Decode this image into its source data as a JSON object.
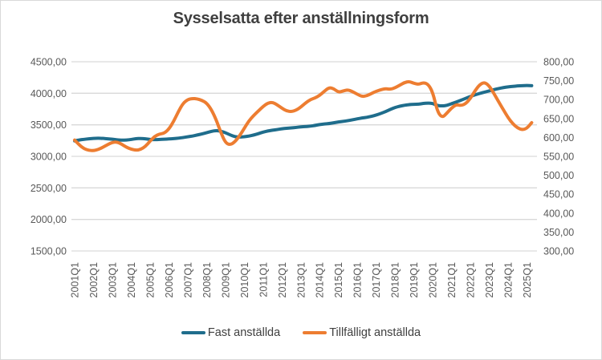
{
  "chart_data": {
    "type": "line",
    "title": "Sysselsatta efter anställningsform",
    "grid": true,
    "legend_position": "bottom",
    "left_axis": {
      "min": 1500,
      "max": 4500,
      "tick_labels": [
        "4500,00",
        "4000,00",
        "3500,00",
        "3000,00",
        "2500,00",
        "2000,00",
        "1500,00"
      ]
    },
    "right_axis": {
      "min": 300,
      "max": 800,
      "tick_labels": [
        "800,00",
        "750,00",
        "700,00",
        "650,00",
        "600,00",
        "550,00",
        "500,00",
        "450,00",
        "400,00",
        "350,00",
        "300,00"
      ]
    },
    "x_axis": {
      "start": "2001Q1",
      "end": "2025Q2",
      "frequency": "quarterly",
      "points_per_tick": 4,
      "tick_labels": [
        "2001Q1",
        "2002Q1",
        "2003Q1",
        "2004Q1",
        "2005Q1",
        "2006Q1",
        "2007Q1",
        "2008Q1",
        "2009Q1",
        "2010Q1",
        "2011Q1",
        "2012Q1",
        "2013Q1",
        "2014Q1",
        "2015Q1",
        "2016Q1",
        "2017Q1",
        "2018Q1",
        "2019Q1",
        "2020Q1",
        "2021Q1",
        "2022Q1",
        "2023Q1",
        "2024Q1",
        "2025Q1"
      ]
    },
    "series": [
      {
        "name": "Fast anställda",
        "axis": "left",
        "color": "#1F6D8C",
        "values": [
          3245,
          3260,
          3270,
          3278,
          3285,
          3288,
          3285,
          3278,
          3272,
          3262,
          3256,
          3258,
          3268,
          3280,
          3285,
          3278,
          3268,
          3264,
          3268,
          3272,
          3275,
          3280,
          3288,
          3298,
          3310,
          3322,
          3338,
          3355,
          3375,
          3395,
          3410,
          3400,
          3375,
          3340,
          3312,
          3305,
          3310,
          3322,
          3338,
          3360,
          3385,
          3402,
          3415,
          3425,
          3438,
          3445,
          3450,
          3458,
          3468,
          3472,
          3478,
          3490,
          3505,
          3512,
          3520,
          3532,
          3545,
          3555,
          3565,
          3580,
          3595,
          3608,
          3618,
          3635,
          3655,
          3680,
          3710,
          3745,
          3775,
          3795,
          3810,
          3820,
          3825,
          3828,
          3838,
          3845,
          3840,
          3805,
          3798,
          3808,
          3835,
          3860,
          3890,
          3920,
          3950,
          3975,
          3998,
          4018,
          4038,
          4058,
          4075,
          4090,
          4102,
          4110,
          4116,
          4120,
          4124,
          4120
        ]
      },
      {
        "name": "Tillfälligt anställda",
        "axis": "right",
        "color": "#ED7D31",
        "values": [
          593,
          580,
          570,
          566,
          565,
          568,
          574,
          581,
          587,
          588,
          582,
          574,
          569,
          566,
          568,
          576,
          590,
          603,
          609,
          611,
          622,
          642,
          668,
          690,
          700,
          703,
          702,
          698,
          691,
          674,
          648,
          614,
          586,
          580,
          588,
          604,
          624,
          644,
          658,
          670,
          682,
          691,
          693,
          686,
          677,
          670,
          668,
          672,
          680,
          691,
          700,
          704,
          711,
          722,
          732,
          729,
          719,
          723,
          726,
          721,
          714,
          708,
          710,
          716,
          722,
          726,
          729,
          727,
          731,
          738,
          745,
          748,
          743,
          740,
          745,
          741,
          720,
          668,
          652,
          664,
          678,
          687,
          684,
          689,
          703,
          724,
          740,
          746,
          736,
          716,
          694,
          673,
          652,
          636,
          625,
          620,
          624,
          639
        ]
      }
    ],
    "legend": [
      {
        "label": "Fast anställda",
        "color": "#1F6D8C"
      },
      {
        "label": "Tillfälligt anställda",
        "color": "#ED7D31"
      }
    ],
    "colors": {
      "grid": "#D9D9D9",
      "title_text": "#3F3F3F",
      "axis_text": "#595959",
      "legend_text": "#404040",
      "background": "#FFFFFF",
      "border": "#D9D9D9"
    }
  }
}
